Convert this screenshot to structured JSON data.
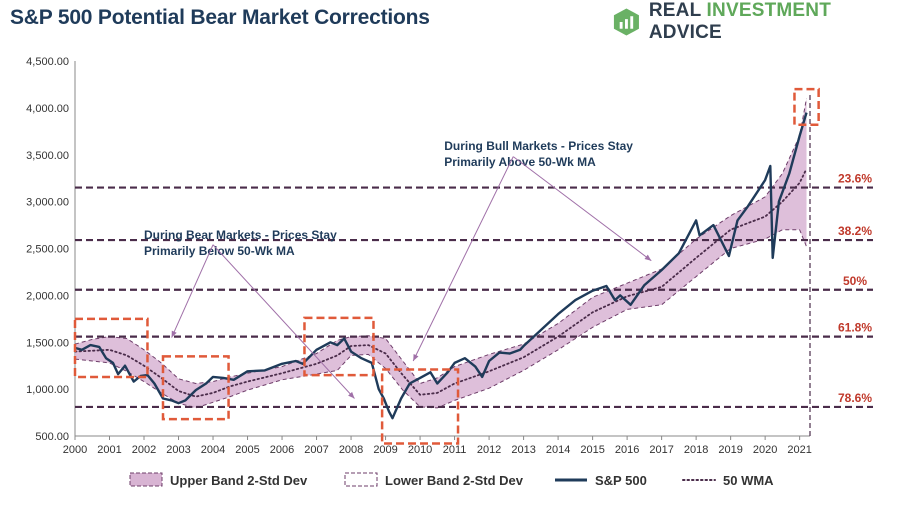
{
  "header": {
    "title": "S&P 500 Potential Bear Market Corrections",
    "brand_part1": "REAL ",
    "brand_part2": "INVESTMENT",
    "brand_part3": " ADVICE",
    "brand_icon": "chart-logo-icon"
  },
  "colors": {
    "band_fill": "#d8b4d3",
    "band_stroke": "#6e3e6a",
    "price": "#1f3b5a",
    "wma": "#4a2c4a",
    "fib_line": "#4a2c4a",
    "fib_label": "#c0392b",
    "box": "#e05a3a",
    "arrow": "#a070a8",
    "accent_green": "#5fa85a"
  },
  "chart_data": {
    "type": "line",
    "xlim": [
      2000,
      2021.3
    ],
    "ylim": [
      500,
      4500
    ],
    "x_ticks": [
      "2000",
      "2001",
      "2002",
      "2003",
      "2004",
      "2005",
      "2006",
      "2007",
      "2008",
      "2009",
      "2010",
      "2011",
      "2012",
      "2013",
      "2014",
      "2015",
      "2016",
      "2017",
      "2018",
      "2019",
      "2020",
      "2021"
    ],
    "y_ticks": [
      "500.00",
      "1,000.00",
      "1,500.00",
      "2,000.00",
      "2,500.00",
      "3,000.00",
      "3,500.00",
      "4,000.00",
      "4,500.00"
    ],
    "series": [
      {
        "name": "S&P 500",
        "x": [
          2000,
          2000.2,
          2000.45,
          2000.7,
          2000.9,
          2001.1,
          2001.25,
          2001.45,
          2001.7,
          2001.9,
          2002.1,
          2002.3,
          2002.55,
          2002.8,
          2003.0,
          2003.2,
          2003.5,
          2003.8,
          2004.0,
          2004.3,
          2004.6,
          2005.0,
          2005.5,
          2006.0,
          2006.4,
          2006.6,
          2007.0,
          2007.4,
          2007.6,
          2007.8,
          2008.0,
          2008.3,
          2008.6,
          2008.8,
          2008.95,
          2009.1,
          2009.2,
          2009.45,
          2009.7,
          2010.0,
          2010.3,
          2010.5,
          2010.8,
          2011.0,
          2011.3,
          2011.6,
          2011.8,
          2012.0,
          2012.3,
          2012.6,
          2012.9,
          2013.0,
          2013.5,
          2014.0,
          2014.5,
          2015.0,
          2015.4,
          2015.65,
          2015.8,
          2016.1,
          2016.5,
          2017.0,
          2017.5,
          2018.0,
          2018.1,
          2018.5,
          2018.95,
          2019.2,
          2019.5,
          2020.0,
          2020.15,
          2020.22,
          2020.4,
          2020.7,
          2021.0,
          2021.2
        ],
        "values": [
          1440,
          1420,
          1470,
          1450,
          1330,
          1280,
          1160,
          1250,
          1080,
          1140,
          1150,
          1060,
          900,
          880,
          850,
          880,
          990,
          1060,
          1130,
          1120,
          1100,
          1190,
          1200,
          1270,
          1300,
          1270,
          1420,
          1500,
          1470,
          1540,
          1400,
          1330,
          1280,
          1000,
          900,
          760,
          690,
          900,
          1060,
          1120,
          1180,
          1060,
          1180,
          1280,
          1330,
          1240,
          1130,
          1300,
          1390,
          1380,
          1420,
          1460,
          1630,
          1800,
          1950,
          2050,
          2100,
          1950,
          2000,
          1900,
          2110,
          2270,
          2450,
          2800,
          2640,
          2750,
          2420,
          2800,
          2950,
          3230,
          3380,
          2400,
          3000,
          3300,
          3700,
          3950
        ]
      },
      {
        "name": "50 WMA",
        "x": [
          2000,
          2000.5,
          2001,
          2001.5,
          2002,
          2002.5,
          2003,
          2003.5,
          2004,
          2004.5,
          2005,
          2006,
          2007,
          2007.6,
          2008,
          2008.5,
          2009,
          2009.5,
          2010,
          2010.5,
          2011,
          2012,
          2013,
          2014,
          2015,
          2016,
          2017,
          2018,
          2019,
          2020,
          2020.5,
          2021,
          2021.2
        ],
        "values": [
          1400,
          1410,
          1420,
          1360,
          1250,
          1120,
          980,
          920,
          960,
          1030,
          1080,
          1170,
          1270,
          1360,
          1460,
          1470,
          1380,
          1150,
          940,
          960,
          1060,
          1190,
          1340,
          1560,
          1820,
          1990,
          2090,
          2400,
          2700,
          2840,
          3000,
          3200,
          3350
        ]
      },
      {
        "name": "Upper Band 2-Std Dev",
        "values": []
      },
      {
        "name": "Lower Band 2-Std Dev",
        "values": []
      }
    ],
    "bands": {
      "x": [
        2000,
        2000.5,
        2001,
        2001.5,
        2002,
        2002.5,
        2003,
        2003.5,
        2004,
        2004.5,
        2005,
        2006,
        2007,
        2007.6,
        2008,
        2008.5,
        2009,
        2009.5,
        2010,
        2010.5,
        2011,
        2012,
        2013,
        2014,
        2015,
        2016,
        2017,
        2018,
        2019,
        2020,
        2020.5,
        2021,
        2021.2
      ],
      "upper": [
        1480,
        1530,
        1560,
        1540,
        1420,
        1280,
        1110,
        1060,
        1080,
        1130,
        1170,
        1240,
        1380,
        1520,
        1560,
        1570,
        1540,
        1300,
        1060,
        1120,
        1240,
        1370,
        1480,
        1700,
        1980,
        2130,
        2280,
        2600,
        2850,
        3050,
        3300,
        3700,
        4100
      ],
      "lower": [
        1320,
        1300,
        1280,
        1190,
        1080,
        960,
        850,
        800,
        860,
        920,
        990,
        1100,
        1160,
        1200,
        1360,
        1370,
        1220,
        990,
        810,
        800,
        880,
        1010,
        1200,
        1420,
        1660,
        1850,
        1900,
        2200,
        2500,
        2600,
        2700,
        2700,
        2520
      ]
    },
    "fib_levels": [
      {
        "label": "23.6%",
        "value": 3150
      },
      {
        "label": "38.2%",
        "value": 2590
      },
      {
        "label": "50%",
        "value": 2060
      },
      {
        "label": "61.8%",
        "value": 1560
      },
      {
        "label": "78.6%",
        "value": 810
      }
    ],
    "annotations": [
      {
        "text": [
          "During Bear Markets - Prices Stay",
          "Primarily Below 50-Wk MA"
        ],
        "x": 2002.0,
        "y": 2600
      },
      {
        "text": [
          "During Bull Markets - Prices Stay",
          "Primarily Above 50-Wk MA"
        ],
        "x": 2010.7,
        "y": 3550
      }
    ],
    "legend": [
      {
        "label": "Upper Band 2-Std Dev",
        "style": "band-fill"
      },
      {
        "label": "Lower Band 2-Std Dev",
        "style": "band-dash"
      },
      {
        "label": "S&P 500",
        "style": "solid"
      },
      {
        "label": "50 WMA",
        "style": "dotted"
      }
    ],
    "legend_position": "bottom",
    "grid": false
  }
}
